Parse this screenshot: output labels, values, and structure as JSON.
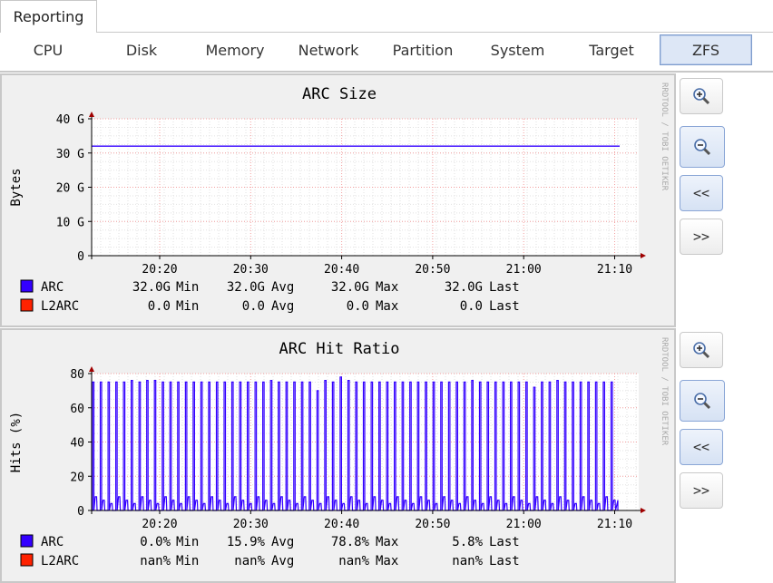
{
  "top_tab": {
    "label": "Reporting"
  },
  "subtabs": [
    {
      "label": "CPU",
      "active": false
    },
    {
      "label": "Disk",
      "active": false
    },
    {
      "label": "Memory",
      "active": false
    },
    {
      "label": "Network",
      "active": false
    },
    {
      "label": "Partition",
      "active": false
    },
    {
      "label": "System",
      "active": false
    },
    {
      "label": "Target",
      "active": false
    },
    {
      "label": "ZFS",
      "active": true
    }
  ],
  "buttons": {
    "zoom_in": "zoom-in-icon",
    "zoom_out": "zoom-out-icon",
    "back": "<<",
    "forward": ">>"
  },
  "watermark": "RRDTOOL / TOBI OETIKER",
  "chart_data": [
    {
      "type": "line",
      "title": "ARC Size",
      "ylabel": "Bytes",
      "x_ticks": [
        "20:20",
        "20:30",
        "20:40",
        "20:50",
        "21:00",
        "21:10"
      ],
      "y_ticks": [
        "0",
        "10 G",
        "20 G",
        "30 G",
        "40 G"
      ],
      "ylim": [
        0,
        40
      ],
      "series": [
        {
          "name": "ARC",
          "color": "#3300ff",
          "values": [
            32,
            32
          ]
        },
        {
          "name": "L2ARC",
          "color": "#ff2200",
          "values": [
            0,
            0
          ]
        }
      ],
      "legend": [
        {
          "name": "ARC",
          "color": "#3300ff",
          "min": "32.0G",
          "avg": "32.0G",
          "max": "32.0G",
          "last": "32.0G"
        },
        {
          "name": "L2ARC",
          "color": "#ff2200",
          "min": "0.0",
          "avg": "0.0",
          "max": "0.0",
          "last": "0.0"
        }
      ],
      "labels": {
        "min": "Min",
        "avg": "Avg",
        "max": "Max",
        "last": "Last"
      }
    },
    {
      "type": "line",
      "title": "ARC Hit Ratio",
      "ylabel": "Hits (%)",
      "x_ticks": [
        "20:20",
        "20:30",
        "20:40",
        "20:50",
        "21:00",
        "21:10"
      ],
      "y_ticks": [
        "0",
        "20",
        "40",
        "60",
        "80"
      ],
      "ylim": [
        0,
        80
      ],
      "series": [
        {
          "name": "ARC",
          "color": "#3300ff",
          "peaks": [
            75,
            75,
            75,
            75,
            75,
            76,
            75,
            76,
            76,
            75,
            75,
            75,
            75,
            75,
            75,
            75,
            75,
            75,
            75,
            75,
            75,
            75,
            75,
            76,
            75,
            75,
            75,
            75,
            75,
            70,
            76,
            75,
            78,
            76,
            75,
            75,
            75,
            75,
            75,
            75,
            75,
            75,
            75,
            75,
            75,
            75,
            75,
            75,
            75,
            76,
            75,
            75,
            75,
            75,
            75,
            75,
            75,
            72,
            75,
            75,
            76,
            75,
            75,
            75,
            75,
            75,
            75,
            75
          ]
        },
        {
          "name": "L2ARC",
          "color": "#ff2200",
          "values": []
        }
      ],
      "legend": [
        {
          "name": "ARC",
          "color": "#3300ff",
          "min": "0.0%",
          "avg": "15.9%",
          "max": "78.8%",
          "last": "5.8%"
        },
        {
          "name": "L2ARC",
          "color": "#ff2200",
          "min": "nan%",
          "avg": "nan%",
          "max": "nan%",
          "last": "nan%"
        }
      ],
      "labels": {
        "min": "Min",
        "avg": "Avg",
        "max": "Max",
        "last": "Last"
      }
    }
  ]
}
